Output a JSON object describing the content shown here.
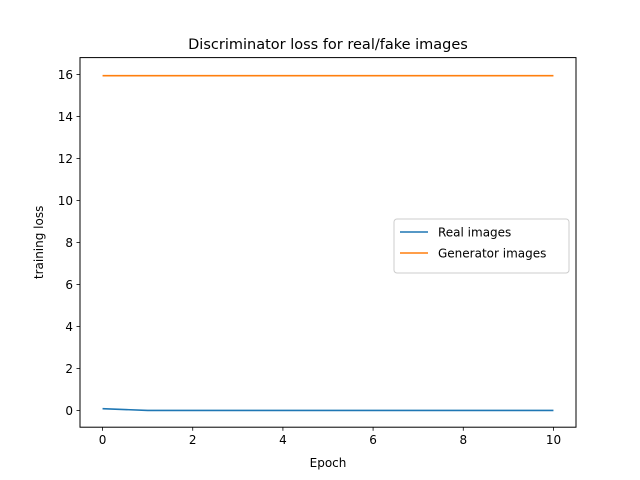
{
  "chart_data": {
    "type": "line",
    "title": "Discriminator loss for real/fake images",
    "xlabel": "Epoch",
    "ylabel": "training loss",
    "xlim": [
      -0.5,
      10.5
    ],
    "ylim": [
      -0.8,
      16.8
    ],
    "xticks": [
      0,
      2,
      4,
      6,
      8,
      10
    ],
    "yticks": [
      0,
      2,
      4,
      6,
      8,
      10,
      12,
      14,
      16
    ],
    "grid": false,
    "legend_position": "center-right",
    "x": [
      0,
      1,
      2,
      3,
      4,
      5,
      6,
      7,
      8,
      9,
      10
    ],
    "series": [
      {
        "name": "Real images",
        "color": "#1f77b4",
        "values": [
          0.08,
          0.0,
          0.0,
          0.0,
          0.0,
          0.0,
          0.0,
          0.0,
          0.0,
          0.0,
          0.0
        ]
      },
      {
        "name": "Generator images",
        "color": "#ff7f0e",
        "values": [
          15.94,
          15.94,
          15.94,
          15.94,
          15.94,
          15.94,
          15.94,
          15.94,
          15.94,
          15.94,
          15.94
        ]
      }
    ]
  }
}
